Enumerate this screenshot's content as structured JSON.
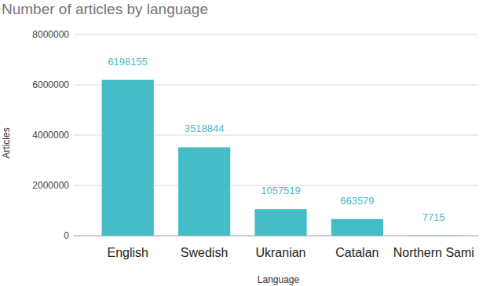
{
  "chart_data": {
    "type": "bar",
    "title": "Number of articles by language",
    "x_label": "Language",
    "y_label": "Articles",
    "categories": [
      "English",
      "Swedish",
      "Ukranian",
      "Catalan",
      "Northern Sami"
    ],
    "values": [
      6198155,
      3518844,
      1057519,
      663579,
      7715
    ],
    "color": "#46bdc6",
    "ylim": [
      0,
      8000000
    ],
    "yticks": [
      0,
      2000000,
      4000000,
      6000000,
      8000000
    ],
    "grid": true,
    "data_labels": true
  }
}
